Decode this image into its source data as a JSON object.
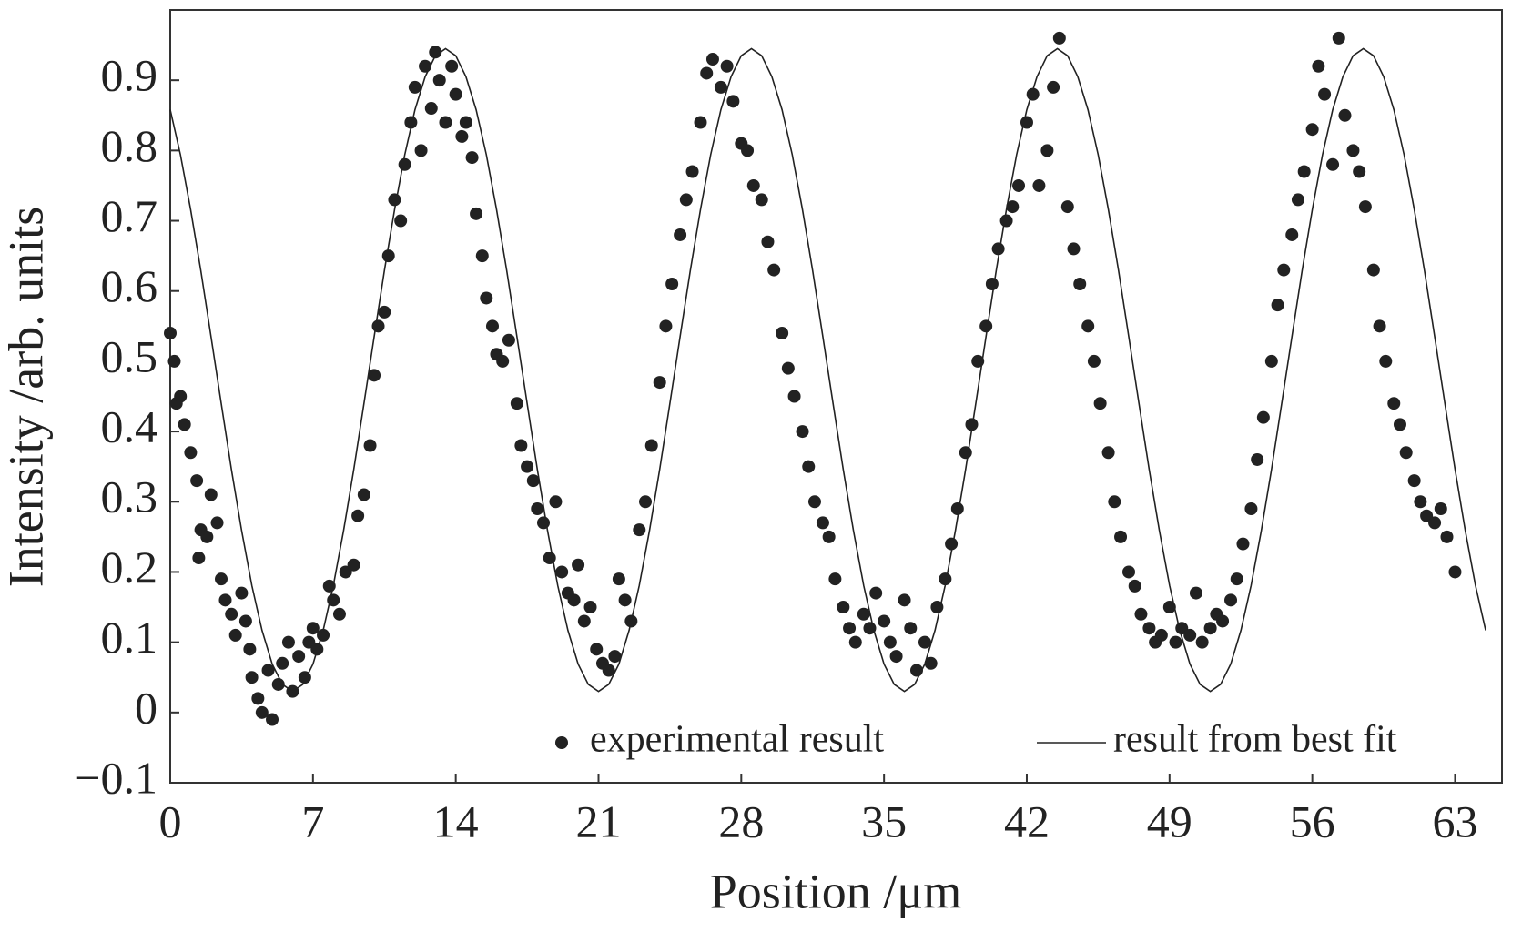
{
  "chart_data": {
    "type": "scatter",
    "xlabel": "Position /μm",
    "ylabel": "Intensity /arb. units",
    "xlim": [
      0,
      65.3
    ],
    "ylim": [
      -0.1,
      1.0
    ],
    "xticks": [
      0,
      7,
      14,
      21,
      28,
      35,
      42,
      49,
      56,
      63
    ],
    "yticks": [
      {
        "value": -0.1,
        "label": "−0.1"
      },
      0,
      0.1,
      0.2,
      0.3,
      0.4,
      0.5,
      0.6,
      0.7,
      0.8,
      0.9
    ],
    "grid": false,
    "legend": "lower right",
    "series": [
      {
        "name": "experimental result",
        "type": "scatter",
        "color": "#222222",
        "x": [
          0,
          0.2,
          0.3,
          0.5,
          0.7,
          1,
          1.3,
          1.5,
          1.4,
          1.8,
          2,
          2.3,
          2.5,
          2.7,
          3,
          3.2,
          3.5,
          3.7,
          3.9,
          4,
          4.3,
          4.5,
          4.8,
          5,
          5.3,
          5.5,
          5.8,
          6,
          6.3,
          6.6,
          6.8,
          7,
          7.2,
          7.5,
          7.8,
          8,
          8.3,
          8.6,
          9,
          9.2,
          9.5,
          9.8,
          10,
          10.2,
          10.5,
          10.7,
          11,
          11.3,
          11.5,
          11.8,
          12,
          12.3,
          12.5,
          12.8,
          13,
          13.2,
          13.5,
          13.8,
          14,
          14.3,
          14.5,
          14.8,
          15,
          15.3,
          15.5,
          15.8,
          16,
          16.3,
          16.6,
          17,
          17.2,
          17.5,
          17.8,
          18,
          18.3,
          18.6,
          18.9,
          19.2,
          19.5,
          19.8,
          20,
          20.3,
          20.6,
          20.9,
          21.2,
          21.5,
          21.8,
          22,
          22.3,
          22.6,
          23,
          23.3,
          23.6,
          24,
          24.3,
          24.6,
          25,
          25.3,
          25.6,
          26,
          26.3,
          26.6,
          27,
          27.3,
          27.6,
          28,
          28.3,
          28.6,
          29,
          29.3,
          29.6,
          30,
          30.3,
          30.6,
          31,
          31.3,
          31.6,
          32,
          32.3,
          32.6,
          33,
          33.3,
          33.6,
          34,
          34.3,
          34.6,
          35,
          35.3,
          35.6,
          36,
          36.3,
          36.6,
          37,
          37.3,
          37.6,
          38,
          38.3,
          38.6,
          39,
          39.3,
          39.6,
          40,
          40.3,
          40.6,
          41,
          41.3,
          41.6,
          42,
          42.3,
          42.6,
          43,
          43.3,
          43.6,
          44,
          44.3,
          44.6,
          45,
          45.3,
          45.6,
          46,
          46.3,
          46.6,
          47,
          47.3,
          47.6,
          48,
          48.3,
          48.6,
          49,
          49.3,
          49.6,
          50,
          50.3,
          50.6,
          51,
          51.3,
          51.6,
          52,
          52.3,
          52.6,
          53,
          53.3,
          53.6,
          54,
          54.3,
          54.6,
          55,
          55.3,
          55.6,
          56,
          56.3,
          56.6,
          57,
          57.3,
          57.6,
          58,
          58.3,
          58.6,
          59,
          59.3,
          59.6,
          60,
          60.3,
          60.6,
          61,
          61.3,
          61.6,
          62,
          62.3,
          62.6,
          63
        ],
        "values": [
          0.54,
          0.5,
          0.44,
          0.45,
          0.41,
          0.37,
          0.33,
          0.26,
          0.22,
          0.25,
          0.31,
          0.27,
          0.19,
          0.16,
          0.14,
          0.11,
          0.17,
          0.13,
          0.09,
          0.05,
          0.02,
          0.0,
          0.06,
          -0.01,
          0.04,
          0.07,
          0.1,
          0.03,
          0.08,
          0.05,
          0.1,
          0.12,
          0.09,
          0.11,
          0.18,
          0.16,
          0.14,
          0.2,
          0.21,
          0.28,
          0.31,
          0.38,
          0.48,
          0.55,
          0.57,
          0.65,
          0.73,
          0.7,
          0.78,
          0.84,
          0.89,
          0.8,
          0.92,
          0.86,
          0.94,
          0.9,
          0.84,
          0.92,
          0.88,
          0.82,
          0.84,
          0.79,
          0.71,
          0.65,
          0.59,
          0.55,
          0.51,
          0.5,
          0.53,
          0.44,
          0.38,
          0.35,
          0.33,
          0.29,
          0.27,
          0.22,
          0.3,
          0.2,
          0.17,
          0.16,
          0.21,
          0.13,
          0.15,
          0.09,
          0.07,
          0.06,
          0.08,
          0.19,
          0.16,
          0.13,
          0.26,
          0.3,
          0.38,
          0.47,
          0.55,
          0.61,
          0.68,
          0.73,
          0.77,
          0.84,
          0.91,
          0.93,
          0.89,
          0.92,
          0.87,
          0.81,
          0.8,
          0.75,
          0.73,
          0.67,
          0.63,
          0.54,
          0.49,
          0.45,
          0.4,
          0.35,
          0.3,
          0.27,
          0.25,
          0.19,
          0.15,
          0.12,
          0.1,
          0.14,
          0.12,
          0.17,
          0.13,
          0.1,
          0.08,
          0.16,
          0.12,
          0.06,
          0.1,
          0.07,
          0.15,
          0.19,
          0.24,
          0.29,
          0.37,
          0.41,
          0.5,
          0.55,
          0.61,
          0.66,
          0.7,
          0.72,
          0.75,
          0.84,
          0.88,
          0.75,
          0.8,
          0.89,
          0.96,
          0.72,
          0.66,
          0.61,
          0.55,
          0.5,
          0.44,
          0.37,
          0.3,
          0.25,
          0.2,
          0.18,
          0.14,
          0.12,
          0.1,
          0.11,
          0.15,
          0.1,
          0.12,
          0.11,
          0.17,
          0.1,
          0.12,
          0.14,
          0.13,
          0.16,
          0.19,
          0.24,
          0.29,
          0.36,
          0.42,
          0.5,
          0.58,
          0.63,
          0.68,
          0.73,
          0.77,
          0.83,
          0.92,
          0.88,
          0.78,
          0.96,
          0.85,
          0.8,
          0.77,
          0.72,
          0.63,
          0.55,
          0.5,
          0.44,
          0.41,
          0.37,
          0.33,
          0.3,
          0.28,
          0.27,
          0.29,
          0.25,
          0.2
        ]
      },
      {
        "name": "result from best fit",
        "type": "line",
        "color": "#222222",
        "x": [
          0,
          0.5,
          1,
          1.5,
          2,
          2.5,
          3,
          3.5,
          4,
          4.5,
          5,
          5.5,
          6,
          6.5,
          7,
          7.5,
          8,
          8.5,
          9,
          9.5,
          10,
          10.5,
          11,
          11.5,
          12,
          12.5,
          13,
          13.5,
          14,
          14.5,
          15,
          15.5,
          16,
          16.5,
          17,
          17.5,
          18,
          18.5,
          19,
          19.5,
          20,
          20.5,
          21,
          21.5,
          22,
          22.5,
          23,
          23.5,
          24,
          24.5,
          25,
          25.5,
          26,
          26.5,
          27,
          27.5,
          28,
          28.5,
          29,
          29.5,
          30,
          30.5,
          31,
          31.5,
          32,
          32.5,
          33,
          33.5,
          34,
          34.5,
          35,
          35.5,
          36,
          36.5,
          37,
          37.5,
          38,
          38.5,
          39,
          39.5,
          40,
          40.5,
          41,
          41.5,
          42,
          42.5,
          43,
          43.5,
          44,
          44.5,
          45,
          45.5,
          46,
          46.5,
          47,
          47.5,
          48,
          48.5,
          49,
          49.5,
          50,
          50.5,
          51,
          51.5,
          52,
          52.5,
          53,
          53.5,
          54,
          54.5,
          55,
          55.5,
          56,
          56.5,
          57,
          57.5,
          58,
          58.5,
          59,
          59.5,
          60,
          60.5,
          61,
          61.5,
          62,
          62.5,
          63,
          63.5,
          64,
          64.5
        ],
        "values": [
          0.858,
          0.794,
          0.716,
          0.629,
          0.535,
          0.44,
          0.346,
          0.259,
          0.181,
          0.117,
          0.069,
          0.04,
          0.03,
          0.04,
          0.069,
          0.117,
          0.181,
          0.259,
          0.346,
          0.44,
          0.535,
          0.629,
          0.716,
          0.794,
          0.858,
          0.905,
          0.935,
          0.945,
          0.935,
          0.905,
          0.858,
          0.794,
          0.716,
          0.629,
          0.535,
          0.44,
          0.346,
          0.259,
          0.181,
          0.117,
          0.069,
          0.04,
          0.03,
          0.04,
          0.069,
          0.117,
          0.181,
          0.259,
          0.346,
          0.44,
          0.535,
          0.629,
          0.716,
          0.794,
          0.858,
          0.905,
          0.935,
          0.945,
          0.935,
          0.905,
          0.858,
          0.794,
          0.716,
          0.629,
          0.535,
          0.44,
          0.346,
          0.259,
          0.181,
          0.117,
          0.069,
          0.04,
          0.03,
          0.04,
          0.069,
          0.117,
          0.181,
          0.259,
          0.346,
          0.44,
          0.535,
          0.629,
          0.716,
          0.794,
          0.858,
          0.905,
          0.935,
          0.945,
          0.935,
          0.905,
          0.858,
          0.794,
          0.716,
          0.629,
          0.535,
          0.44,
          0.346,
          0.259,
          0.181,
          0.117,
          0.069,
          0.04,
          0.03,
          0.04,
          0.069,
          0.117,
          0.181,
          0.259,
          0.346,
          0.44,
          0.535,
          0.629,
          0.716,
          0.794,
          0.858,
          0.905,
          0.935,
          0.945,
          0.935,
          0.905,
          0.858,
          0.794,
          0.716,
          0.629,
          0.535,
          0.44,
          0.346,
          0.259,
          0.181,
          0.117
        ]
      }
    ]
  }
}
